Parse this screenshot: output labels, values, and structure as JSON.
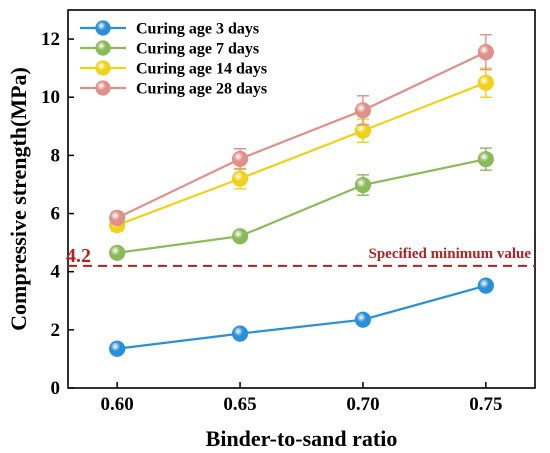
{
  "chart_data": {
    "type": "line",
    "xlabel": "Binder-to-sand ratio",
    "ylabel": "Compressive strength(MPa)",
    "x": [
      0.6,
      0.65,
      0.7,
      0.75
    ],
    "x_tick_labels": [
      "0.60",
      "0.65",
      "0.70",
      "0.75"
    ],
    "xlim": [
      0.58,
      0.77
    ],
    "ylim": [
      0,
      13
    ],
    "y_ticks": [
      0,
      2,
      4,
      6,
      8,
      10,
      12
    ],
    "grid": false,
    "legend_position": "top-left",
    "series": [
      {
        "name": "Curing age 3 days",
        "color": "#2a8fd6",
        "values": [
          1.35,
          1.87,
          2.35,
          3.52
        ],
        "errors": [
          0.1,
          0.1,
          0.12,
          0.12
        ]
      },
      {
        "name": "Curing age 7 days",
        "color": "#8cb95a",
        "values": [
          4.65,
          5.22,
          6.98,
          7.87
        ],
        "errors": [
          0.15,
          0.15,
          0.35,
          0.38
        ]
      },
      {
        "name": "Curing age 14 days",
        "color": "#f0d21a",
        "values": [
          5.6,
          7.2,
          8.85,
          10.5
        ],
        "errors": [
          0.2,
          0.35,
          0.4,
          0.5
        ]
      },
      {
        "name": "Curing age 28 days",
        "color": "#e0908a",
        "values": [
          5.85,
          7.88,
          9.55,
          11.55
        ],
        "errors": [
          0.2,
          0.35,
          0.5,
          0.6
        ]
      }
    ],
    "reference_line": {
      "value": 4.2,
      "value_label": "4.2",
      "label": "Specified minimum value",
      "color": "#b22222"
    }
  }
}
